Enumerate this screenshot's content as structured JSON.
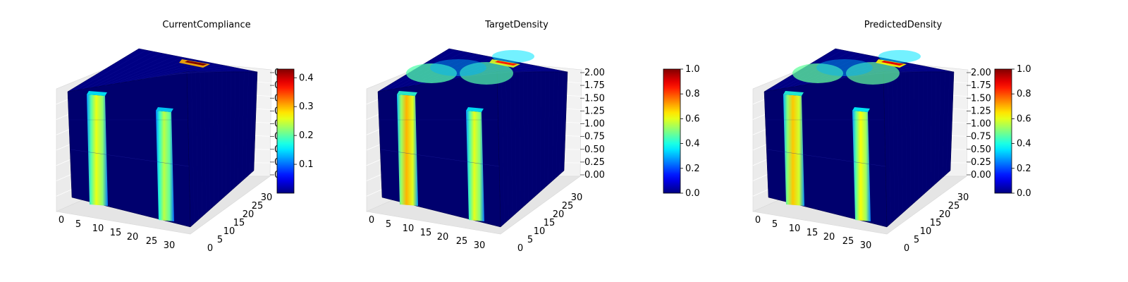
{
  "chart_data": [
    {
      "type": "3d-voxel",
      "title": "CurrentCompliance",
      "x_ticks": [
        "0",
        "5",
        "10",
        "15",
        "20",
        "25",
        "30"
      ],
      "y_ticks": [
        "0",
        "5",
        "10",
        "15",
        "20",
        "25",
        "30"
      ],
      "z_ticks": [
        "0",
        "0",
        "0",
        "0",
        "0",
        "0",
        "0",
        "0",
        "0"
      ],
      "colorbar": {
        "min": 0.0,
        "max": 0.43,
        "ticks": [
          "0.1",
          "0.2",
          "0.3",
          "0.4"
        ],
        "colormap": "jet"
      },
      "columns": [
        {
          "x_center": 7,
          "value": 0.26
        },
        {
          "x_center": 25,
          "value": 0.24
        }
      ],
      "top_hotspot": {
        "x_center": 26,
        "value": 0.43
      },
      "top_glow": 0.04
    },
    {
      "type": "3d-voxel",
      "title": "TargetDensity",
      "x_ticks": [
        "0",
        "5",
        "10",
        "15",
        "20",
        "25",
        "30"
      ],
      "y_ticks": [
        "0",
        "5",
        "10",
        "15",
        "20",
        "25",
        "30"
      ],
      "z_ticks": [
        "0.00",
        "0.25",
        "0.50",
        "0.75",
        "1.00",
        "1.25",
        "1.50",
        "1.75",
        "2.00"
      ],
      "colorbar": {
        "min": 0.0,
        "max": 1.0,
        "ticks": [
          "0.0",
          "0.2",
          "0.4",
          "0.6",
          "0.8",
          "1.0"
        ],
        "colormap": "jet"
      },
      "columns": [
        {
          "x_center": 7,
          "value": 0.7
        },
        {
          "x_center": 25,
          "value": 0.6
        }
      ],
      "top_hotspot": {
        "x_center": 26,
        "value": 0.85
      },
      "top_glow": 0.35
    },
    {
      "type": "3d-voxel",
      "title": "PredictedDensity",
      "x_ticks": [
        "0",
        "5",
        "10",
        "15",
        "20",
        "25",
        "30"
      ],
      "y_ticks": [
        "0",
        "5",
        "10",
        "15",
        "20",
        "25",
        "30"
      ],
      "z_ticks": [
        "0.00",
        "0.25",
        "0.50",
        "0.75",
        "1.00",
        "1.25",
        "1.50",
        "1.75",
        "2.00"
      ],
      "colorbar": {
        "min": 0.0,
        "max": 1.0,
        "ticks": [
          "0.0",
          "0.2",
          "0.4",
          "0.6",
          "0.8",
          "1.0"
        ],
        "colormap": "jet"
      },
      "columns": [
        {
          "x_center": 7,
          "value": 0.68
        },
        {
          "x_center": 25,
          "value": 0.62
        }
      ],
      "top_hotspot": {
        "x_center": 26,
        "value": 0.9
      },
      "top_glow": 0.4
    }
  ]
}
